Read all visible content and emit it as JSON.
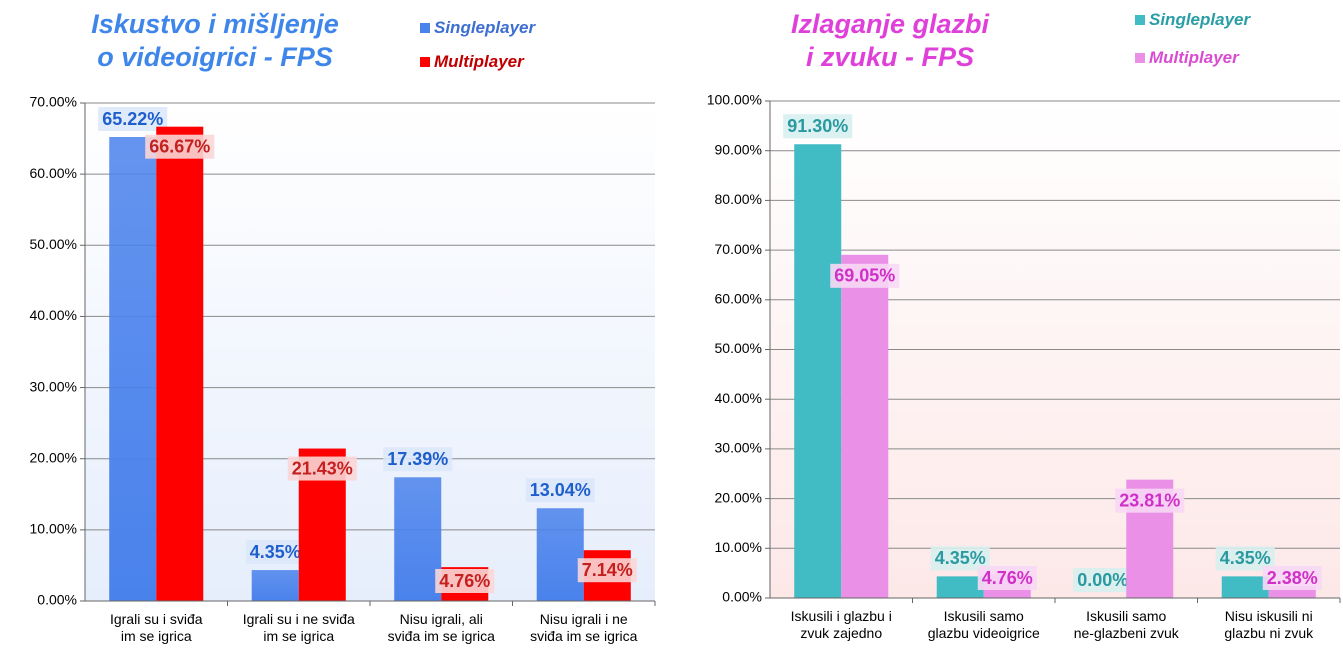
{
  "chart_data": [
    {
      "type": "bar",
      "title": "Iskustvo i mišljenje\no videoigrici - FPS",
      "title_color": "#3f86ea",
      "background": [
        "#ffffff",
        "#e6eefc"
      ],
      "categories": [
        "Igrali su i sviđa\nim se igrica",
        "Igrali su i ne sviđa\nim se igrica",
        "Nisu igrali, ali\nsviđa im se igrica",
        "Nisu igrali i ne\nsviđa im se igrica"
      ],
      "series": [
        {
          "name": "Singleplayer",
          "color": "#4a82ec",
          "legend_color": "#3c6fd1",
          "label_color": "#1f5fcc",
          "label_bg": "#dbe8fb",
          "values": [
            65.22,
            4.35,
            17.39,
            13.04
          ],
          "value_labels": [
            "65.22%",
            "4.35%",
            "17.39%",
            "13.04%"
          ]
        },
        {
          "name": "Multiplayer",
          "color": "#ff0000",
          "legend_color": "#c00000",
          "label_color": "#c42020",
          "label_bg": "#fbd6d6",
          "values": [
            66.67,
            21.43,
            4.76,
            7.14
          ],
          "value_labels": [
            "66.67%",
            "21.43%",
            "4.76%",
            "7.14%"
          ]
        }
      ],
      "ylim": [
        0,
        70
      ],
      "yticks": [
        {
          "value": 0,
          "label": "0.00%"
        },
        {
          "value": 10,
          "label": "10.00%"
        },
        {
          "value": 20,
          "label": "20.00%"
        },
        {
          "value": 30,
          "label": "30.00%"
        },
        {
          "value": 40,
          "label": "40.00%"
        },
        {
          "value": 50,
          "label": "50.00%"
        },
        {
          "value": 60,
          "label": "60.00%"
        },
        {
          "value": 70,
          "label": "70.00%"
        }
      ],
      "grid": true
    },
    {
      "type": "bar",
      "title": "Izlaganje glazbi\ni zvuku - FPS",
      "title_color": "#e040da",
      "background": [
        "#ffffff",
        "#fde8e8"
      ],
      "categories": [
        "Iskusili i glazbu i\nzvuk zajedno",
        "Iskusili samo\nglazbu videoigrice",
        "Iskusili samo\nne-glazbeni zvuk",
        "Nisu iskusili ni\nglazbu ni zvuk"
      ],
      "series": [
        {
          "name": "Singleplayer",
          "color": "#42bcc4",
          "legend_color": "#2a9ea5",
          "label_color": "#2a9aa0",
          "label_bg": "#d8f0f0",
          "values": [
            91.3,
            4.35,
            0,
            4.35
          ],
          "value_labels": [
            "91.30%",
            "4.35%",
            "0.00%",
            "4.35%"
          ]
        },
        {
          "name": "Multiplayer",
          "color": "#ea90e6",
          "legend_color": "#d94cd2",
          "label_color": "#d030c8",
          "label_bg": "#f8d8f5",
          "values": [
            69.05,
            4.76,
            23.81,
            2.38
          ],
          "value_labels": [
            "69.05%",
            "4.76%",
            "23.81%",
            "2.38%"
          ]
        }
      ],
      "ylim": [
        0,
        100
      ],
      "yticks": [
        {
          "value": 0,
          "label": "0.00%"
        },
        {
          "value": 10,
          "label": "10.00%"
        },
        {
          "value": 20,
          "label": "20.00%"
        },
        {
          "value": 30,
          "label": "30.00%"
        },
        {
          "value": 40,
          "label": "40.00%"
        },
        {
          "value": 50,
          "label": "50.00%"
        },
        {
          "value": 60,
          "label": "60.00%"
        },
        {
          "value": 70,
          "label": "70.00%"
        },
        {
          "value": 80,
          "label": "80.00%"
        },
        {
          "value": 90,
          "label": "90.00%"
        },
        {
          "value": 100,
          "label": "100.00%"
        }
      ],
      "grid": true
    }
  ]
}
